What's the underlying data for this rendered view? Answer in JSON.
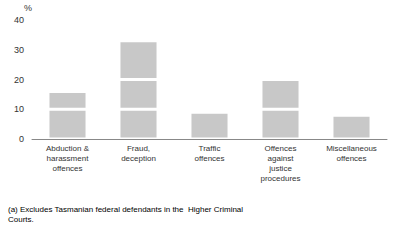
{
  "chart_data": {
    "type": "bar",
    "stacked": true,
    "categories": [
      "Abduction &\nharassment\noffences",
      "Fraud,\ndeception",
      "Traffic\noffences",
      "Offences\nagainst\njustice\nprocedures",
      "Miscellaneous\noffences"
    ],
    "values": [
      [
        10,
        6
      ],
      [
        10,
        10,
        13
      ],
      [
        9
      ],
      [
        10,
        10
      ],
      [
        8
      ]
    ],
    "color": "#c8c8c8",
    "ylabel": "%",
    "annotations": [
      "(a) Excludes Tasmanian federal defendants in the  Higher Criminal\nCourts."
    ],
    "ylim": [
      0,
      40
    ],
    "yticks": [
      0,
      10,
      20,
      30,
      40
    ],
    "grid": false
  }
}
